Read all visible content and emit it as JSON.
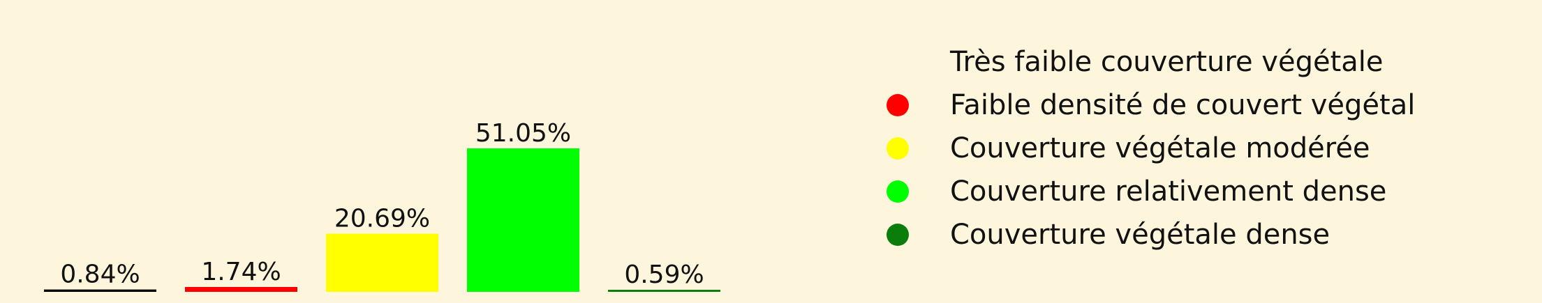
{
  "chart_data": {
    "type": "bar",
    "categories": [
      "Très faible couverture végétale",
      "Faible densité de couvert végétal",
      "Couverture végétale modérée",
      "Couverture relativement dense",
      "Couverture végétale dense"
    ],
    "values": [
      0.84,
      1.74,
      20.69,
      51.05,
      0.59
    ],
    "value_labels": [
      "0.84%",
      "1.74%",
      "20.69%",
      "51.05%",
      "0.59%"
    ],
    "colors": [
      "#000000",
      "#ff0000",
      "#ffff00",
      "#00ff00",
      "#0a7d0a"
    ],
    "ylim": [
      0,
      51.05
    ],
    "legend_placement": "right",
    "grid": false
  }
}
